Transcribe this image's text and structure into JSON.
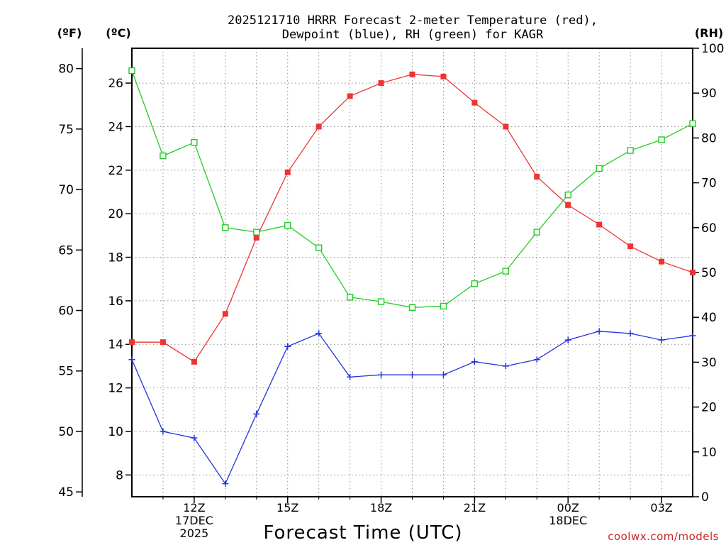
{
  "chart_data": {
    "type": "line",
    "title": [
      "2025121710 HRRR Forecast 2-meter Temperature (red),",
      "Dewpoint (blue), RH (green) for KAGR"
    ],
    "xlabel": "Forecast Time (UTC)",
    "units": {
      "fahrenheit": "(ºF)",
      "celsius": "(ºC)",
      "rh": "(RH)"
    },
    "watermark": "coolwx.com/models",
    "hours": [
      10,
      11,
      12,
      13,
      14,
      15,
      16,
      17,
      18,
      19,
      20,
      21,
      22,
      23,
      24,
      25,
      26,
      27,
      28
    ],
    "xlim": [
      10,
      28
    ],
    "celsius_ylim": [
      7,
      27.6
    ],
    "rh_ylim": [
      0,
      100
    ],
    "x_ticks": [
      {
        "hour": 12,
        "lines": [
          "12Z",
          "17DEC",
          "2025"
        ]
      },
      {
        "hour": 15,
        "lines": [
          "15Z"
        ]
      },
      {
        "hour": 18,
        "lines": [
          "18Z"
        ]
      },
      {
        "hour": 21,
        "lines": [
          "21Z"
        ]
      },
      {
        "hour": 24,
        "lines": [
          "00Z",
          "18DEC"
        ]
      },
      {
        "hour": 27,
        "lines": [
          "03Z"
        ]
      }
    ],
    "celsius_ticks": [
      8,
      10,
      12,
      14,
      16,
      18,
      20,
      22,
      24,
      26
    ],
    "fahrenheit_ticks": [
      45,
      50,
      55,
      60,
      65,
      70,
      75,
      80
    ],
    "rh_ticks": [
      0,
      10,
      20,
      30,
      40,
      50,
      60,
      70,
      80,
      90,
      100
    ],
    "series": [
      {
        "name": "Temperature",
        "unit": "C",
        "color": "#ee3333",
        "marker": "filled-square",
        "values": [
          14.1,
          14.1,
          13.2,
          15.4,
          18.9,
          21.9,
          24.0,
          25.4,
          26.0,
          26.4,
          26.3,
          25.1,
          24.0,
          21.7,
          20.4,
          19.5,
          18.5,
          17.8,
          17.3
        ]
      },
      {
        "name": "Dewpoint",
        "unit": "C",
        "color": "#2233dd",
        "marker": "plus",
        "values": [
          13.3,
          10.0,
          9.7,
          7.6,
          10.8,
          13.9,
          14.5,
          12.5,
          12.6,
          12.6,
          12.6,
          13.2,
          13.0,
          13.3,
          14.2,
          14.6,
          14.5,
          14.2,
          14.4
        ]
      },
      {
        "name": "RH",
        "unit": "%",
        "color": "#22cc22",
        "marker": "open-square",
        "values": [
          95,
          76,
          79,
          60,
          59,
          60.5,
          55.5,
          44.5,
          43.5,
          42.2,
          42.5,
          47.5,
          50.3,
          59,
          67.3,
          73.2,
          77.2,
          79.6,
          83.2
        ]
      }
    ]
  }
}
